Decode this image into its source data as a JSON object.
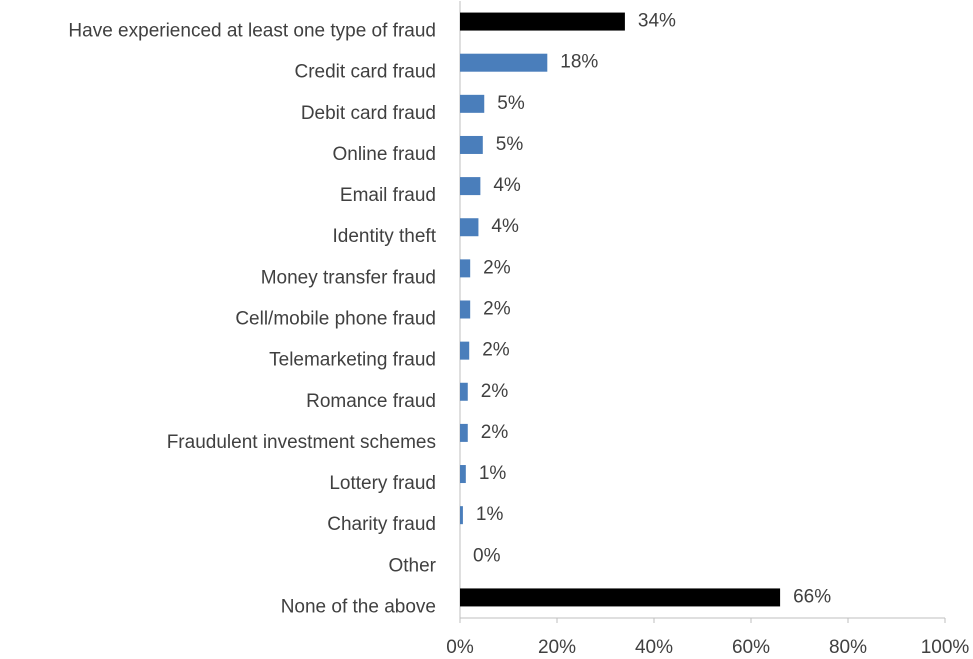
{
  "chart_data": {
    "type": "bar",
    "orientation": "horizontal",
    "categories": [
      "Have experienced at least one type of fraud",
      "Credit card fraud",
      "Debit card fraud",
      "Online fraud",
      "Email fraud",
      "Identity theft",
      "Money transfer fraud",
      "Cell/mobile phone fraud",
      "Telemarketing fraud",
      "Romance fraud",
      "Fraudulent investment schemes",
      "Lottery fraud",
      "Charity fraud",
      "Other",
      "None of the above"
    ],
    "values": [
      34,
      18,
      5,
      4.7,
      4.2,
      3.8,
      2.1,
      2.1,
      1.9,
      1.6,
      1.6,
      1.2,
      0.6,
      0,
      66
    ],
    "value_labels": [
      "34%",
      "18%",
      "5%",
      "5%",
      "4%",
      "4%",
      "2%",
      "2%",
      "2%",
      "2%",
      "2%",
      "1%",
      "1%",
      "0%",
      "66%"
    ],
    "colors": [
      "#000000",
      "#4a7ebb",
      "#4a7ebb",
      "#4a7ebb",
      "#4a7ebb",
      "#4a7ebb",
      "#4a7ebb",
      "#4a7ebb",
      "#4a7ebb",
      "#4a7ebb",
      "#4a7ebb",
      "#4a7ebb",
      "#4a7ebb",
      "#4a7ebb",
      "#000000"
    ],
    "xlim": [
      0,
      100
    ],
    "xticks": [
      {
        "value": 0,
        "label": "0%"
      },
      {
        "value": 20,
        "label": "20%"
      },
      {
        "value": 40,
        "label": "40%"
      },
      {
        "value": 60,
        "label": "60%"
      },
      {
        "value": 80,
        "label": "80%"
      },
      {
        "value": 100,
        "label": "100%"
      }
    ],
    "grid": false
  }
}
